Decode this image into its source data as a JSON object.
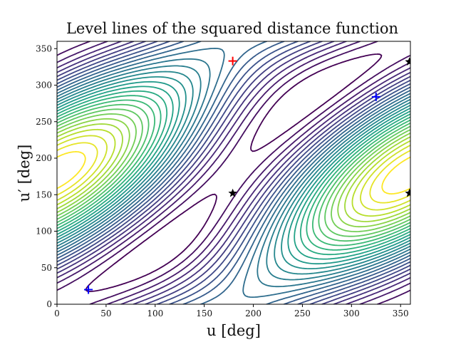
{
  "chart_data": {
    "type": "contour",
    "title": "Level lines of the squared distance function",
    "xlabel": "u [deg]",
    "ylabel": "u′ [deg]",
    "xlim": [
      0,
      360
    ],
    "ylim": [
      0,
      360
    ],
    "xticks": [
      0,
      50,
      100,
      150,
      200,
      250,
      300,
      350
    ],
    "yticks": [
      0,
      50,
      100,
      150,
      200,
      250,
      300,
      350
    ],
    "colormap": "viridis",
    "grid": false,
    "markers": [
      {
        "kind": "plus",
        "color": "#ff0000",
        "x": 179,
        "y": 333
      },
      {
        "kind": "plus",
        "color": "#0000ff",
        "x": 32,
        "y": 20
      },
      {
        "kind": "plus",
        "color": "#0000ff",
        "x": 325,
        "y": 284
      },
      {
        "kind": "star",
        "color": "#000000",
        "x": 179,
        "y": 152
      },
      {
        "kind": "star",
        "color": "#000000",
        "x": 359,
        "y": 152
      },
      {
        "kind": "star",
        "color": "#000000",
        "x": 359,
        "y": 332
      }
    ]
  }
}
